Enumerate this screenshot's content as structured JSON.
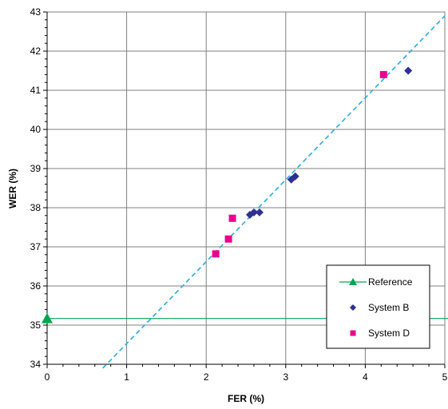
{
  "chart_data": {
    "type": "scatter",
    "xlabel": "FER (%)",
    "ylabel": "WER (%)",
    "xlim": [
      0,
      5
    ],
    "ylim": [
      34,
      43
    ],
    "x_ticks": [
      "0",
      "1",
      "2",
      "3",
      "4",
      "5"
    ],
    "y_ticks": [
      "34",
      "35",
      "36",
      "37",
      "38",
      "39",
      "40",
      "41",
      "42",
      "43"
    ],
    "grid": true,
    "legend_position": "bottom-right",
    "series": [
      {
        "name": "Reference",
        "marker": "triangle",
        "color": "#00a651",
        "points": [
          [
            0,
            35.17
          ]
        ],
        "reference_line_y": 35.17
      },
      {
        "name": "System B",
        "marker": "diamond",
        "color": "#2e3192",
        "points": [
          [
            2.55,
            37.82
          ],
          [
            2.6,
            37.88
          ],
          [
            2.67,
            37.88
          ],
          [
            3.07,
            38.72
          ],
          [
            3.12,
            38.8
          ],
          [
            4.54,
            41.5
          ]
        ]
      },
      {
        "name": "System D",
        "marker": "square",
        "color": "#ec008c",
        "points": [
          [
            2.12,
            36.82
          ],
          [
            2.28,
            37.2
          ],
          [
            2.33,
            37.73
          ],
          [
            4.23,
            41.4
          ]
        ]
      }
    ],
    "trend_line": {
      "style": "dashed",
      "color": "#29abe2",
      "points": [
        [
          0.7,
          33.9
        ],
        [
          5.0,
          42.9
        ]
      ]
    }
  }
}
